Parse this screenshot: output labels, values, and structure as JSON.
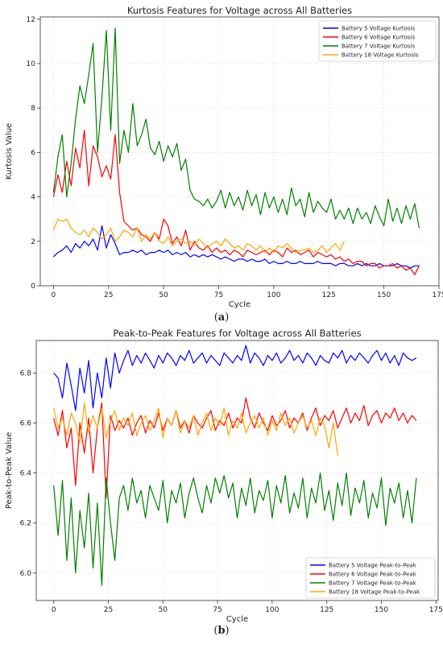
{
  "chart_data": [
    {
      "type": "line",
      "panel_label": "a",
      "title": "Kurtosis Features for Voltage across All Batteries",
      "xlabel": "Cycle",
      "ylabel": "Kurtosis Value",
      "xlim": [
        -6,
        175
      ],
      "ylim": [
        0,
        12.1
      ],
      "xticks": [
        0,
        25,
        50,
        75,
        100,
        125,
        150,
        175
      ],
      "yticks": [
        0,
        2,
        4,
        6,
        8,
        10,
        12
      ],
      "grid": true,
      "legend": "top-right",
      "series": [
        {
          "name": "Battery 5 Voltage Kurtosis",
          "color": "#0000ff",
          "x_step": 2,
          "values": [
            1.3,
            1.5,
            1.6,
            1.8,
            1.5,
            1.9,
            1.7,
            2.0,
            1.8,
            2.1,
            1.6,
            2.7,
            1.7,
            2.3,
            1.9,
            1.4,
            1.5,
            1.5,
            1.6,
            1.5,
            1.6,
            1.4,
            1.5,
            1.5,
            1.6,
            1.5,
            1.6,
            1.4,
            1.5,
            1.4,
            1.5,
            1.3,
            1.4,
            1.3,
            1.4,
            1.3,
            1.4,
            1.3,
            1.2,
            1.3,
            1.2,
            1.1,
            1.2,
            1.2,
            1.1,
            1.2,
            1.1,
            1.1,
            1.2,
            1.0,
            1.1,
            1.0,
            1.0,
            1.1,
            1.0,
            1.0,
            1.1,
            1.0,
            1.0,
            1.0,
            1.1,
            1.0,
            1.0,
            1.0,
            0.9,
            1.0,
            1.0,
            0.9,
            0.9,
            1.0,
            0.9,
            1.0,
            0.9,
            0.9,
            1.0,
            0.9,
            0.9,
            0.9,
            1.0,
            0.9,
            0.9,
            0.8,
            0.9,
            0.9
          ]
        },
        {
          "name": "Battery 6 Voltage Kurtosis",
          "color": "#ff0000",
          "x_step": 2,
          "values": [
            4.0,
            5.0,
            4.2,
            5.6,
            4.5,
            6.2,
            5.3,
            7.0,
            4.5,
            6.3,
            5.8,
            4.9,
            5.4,
            4.8,
            6.8,
            4.2,
            2.9,
            2.7,
            2.5,
            2.6,
            2.3,
            2.2,
            2.0,
            2.4,
            2.1,
            3.0,
            2.7,
            1.9,
            2.2,
            1.8,
            2.5,
            1.6,
            2.0,
            1.7,
            1.6,
            1.8,
            1.5,
            1.7,
            1.5,
            1.6,
            1.4,
            1.6,
            1.5,
            1.3,
            1.6,
            1.5,
            1.4,
            1.5,
            1.6,
            1.4,
            1.6,
            1.5,
            1.3,
            1.7,
            1.5,
            1.6,
            1.4,
            1.5,
            1.6,
            1.3,
            1.5,
            1.4,
            1.3,
            1.4,
            1.2,
            1.3,
            1.1,
            1.2,
            1.0,
            1.1,
            1.1,
            0.9,
            1.0,
            1.0,
            0.8,
            0.9,
            0.9,
            1.0,
            0.8,
            0.9,
            0.7,
            0.8,
            0.5,
            0.9
          ]
        },
        {
          "name": "Battery 7 Voltage Kurtosis",
          "color": "#008000",
          "x_step": 2,
          "values": [
            4.2,
            5.8,
            6.8,
            4.0,
            5.5,
            7.5,
            9.0,
            8.2,
            9.5,
            10.9,
            6.0,
            8.5,
            11.5,
            7.0,
            11.6,
            5.5,
            7.0,
            6.0,
            8.2,
            6.3,
            6.8,
            7.5,
            6.2,
            5.9,
            6.5,
            5.6,
            6.3,
            5.8,
            6.4,
            5.2,
            5.7,
            4.3,
            3.9,
            3.8,
            3.6,
            3.9,
            3.5,
            3.8,
            4.3,
            3.5,
            4.2,
            3.6,
            4.0,
            3.4,
            4.3,
            3.6,
            4.1,
            3.2,
            4.2,
            3.5,
            4.0,
            3.3,
            3.9,
            3.2,
            4.4,
            3.6,
            3.9,
            3.1,
            4.2,
            3.3,
            3.8,
            3.5,
            3.3,
            3.9,
            3.0,
            3.4,
            3.0,
            3.5,
            2.8,
            3.5,
            3.0,
            3.3,
            2.8,
            3.6,
            3.1,
            2.7,
            3.9,
            2.9,
            3.5,
            2.8,
            3.6,
            3.0,
            3.7,
            2.6
          ]
        },
        {
          "name": "Battery 18 Voltage Kurtosis",
          "color": "#ffa500",
          "x_step": 2,
          "values": [
            2.5,
            3.0,
            2.9,
            3.0,
            2.6,
            2.4,
            2.3,
            2.5,
            2.2,
            2.6,
            2.4,
            2.1,
            2.3,
            2.6,
            2.0,
            2.2,
            2.5,
            2.4,
            2.2,
            2.6,
            2.0,
            2.3,
            2.1,
            2.4,
            2.0,
            1.9,
            2.2,
            1.8,
            2.0,
            2.1,
            1.9,
            2.0,
            1.8,
            2.1,
            1.9,
            1.7,
            1.9,
            2.0,
            1.8,
            2.1,
            1.9,
            1.7,
            1.8,
            1.6,
            1.9,
            1.8,
            1.6,
            1.8,
            1.5,
            1.7,
            1.5,
            1.8,
            1.7,
            1.9,
            1.7,
            1.5,
            1.6,
            1.6,
            1.7,
            1.5,
            1.6,
            1.8,
            1.5,
            1.7,
            1.9,
            1.6,
            2.0
          ]
        }
      ]
    },
    {
      "type": "line",
      "panel_label": "b",
      "title": "Peak-to-Peak Features for Voltage across All Batteries",
      "xlabel": "Cycle",
      "ylabel": "Peak-to-Peak Value",
      "xlim": [
        -8,
        176
      ],
      "ylim": [
        5.89,
        6.93
      ],
      "xticks": [
        0,
        25,
        50,
        75,
        100,
        125,
        150,
        175
      ],
      "yticks": [
        6.0,
        6.2,
        6.4,
        6.6,
        6.8
      ],
      "grid": true,
      "legend": "bottom-right",
      "series": [
        {
          "name": "Battery 5 Voltage Peak-to-Peak",
          "color": "#0000ff",
          "x_step": 2,
          "values": [
            6.8,
            6.78,
            6.7,
            6.84,
            6.75,
            6.65,
            6.82,
            6.72,
            6.85,
            6.66,
            6.8,
            6.7,
            6.86,
            6.74,
            6.88,
            6.8,
            6.85,
            6.89,
            6.83,
            6.87,
            6.84,
            6.88,
            6.85,
            6.82,
            6.87,
            6.84,
            6.88,
            6.86,
            6.83,
            6.87,
            6.85,
            6.89,
            6.84,
            6.86,
            6.88,
            6.84,
            6.87,
            6.85,
            6.83,
            6.88,
            6.86,
            6.84,
            6.87,
            6.85,
            6.91,
            6.84,
            6.88,
            6.86,
            6.83,
            6.87,
            6.85,
            6.88,
            6.84,
            6.86,
            6.89,
            6.85,
            6.87,
            6.84,
            6.88,
            6.86,
            6.83,
            6.87,
            6.85,
            6.84,
            6.88,
            6.86,
            6.89,
            6.84,
            6.87,
            6.85,
            6.88,
            6.86,
            6.84,
            6.87,
            6.89,
            6.85,
            6.88,
            6.84,
            6.87,
            6.83,
            6.88,
            6.86,
            6.85,
            6.86
          ]
        },
        {
          "name": "Battery 6 Voltage Peak-to-Peak",
          "color": "#ff0000",
          "x_step": 2,
          "values": [
            6.62,
            6.55,
            6.65,
            6.5,
            6.58,
            6.35,
            6.6,
            6.48,
            6.62,
            6.4,
            6.58,
            6.68,
            6.3,
            6.63,
            6.57,
            6.61,
            6.58,
            6.62,
            6.55,
            6.6,
            6.63,
            6.56,
            6.61,
            6.58,
            6.64,
            6.57,
            6.62,
            6.59,
            6.65,
            6.58,
            6.61,
            6.56,
            6.63,
            6.6,
            6.58,
            6.62,
            6.65,
            6.57,
            6.61,
            6.59,
            6.64,
            6.58,
            6.62,
            6.6,
            6.7,
            6.62,
            6.58,
            6.64,
            6.6,
            6.57,
            6.63,
            6.59,
            6.61,
            6.65,
            6.58,
            6.62,
            6.6,
            6.64,
            6.57,
            6.62,
            6.66,
            6.59,
            6.63,
            6.61,
            6.65,
            6.58,
            6.62,
            6.66,
            6.6,
            6.64,
            6.61,
            6.67,
            6.59,
            6.63,
            6.65,
            6.6,
            6.64,
            6.62,
            6.66,
            6.61,
            6.64,
            6.6,
            6.63,
            6.61
          ]
        },
        {
          "name": "Battery 7 Voltage Peak-to-Peak",
          "color": "#008000",
          "x_step": 2,
          "values": [
            6.35,
            6.15,
            6.37,
            6.05,
            6.3,
            6.0,
            6.25,
            6.1,
            6.32,
            6.02,
            6.28,
            5.95,
            6.38,
            6.2,
            6.05,
            6.3,
            6.35,
            6.25,
            6.38,
            6.28,
            6.33,
            6.22,
            6.35,
            6.3,
            6.25,
            6.37,
            6.2,
            6.33,
            6.28,
            6.36,
            6.22,
            6.32,
            6.38,
            6.3,
            6.24,
            6.35,
            6.28,
            6.38,
            6.32,
            6.39,
            6.3,
            6.36,
            6.22,
            6.34,
            6.27,
            6.38,
            6.24,
            6.33,
            6.29,
            6.37,
            6.22,
            6.35,
            6.28,
            6.39,
            6.24,
            6.32,
            6.26,
            6.38,
            6.22,
            6.34,
            6.28,
            6.4,
            6.25,
            6.33,
            6.21,
            6.36,
            6.27,
            6.4,
            6.23,
            6.34,
            6.28,
            6.37,
            6.22,
            6.32,
            6.26,
            6.38,
            6.19,
            6.34,
            6.28,
            6.36,
            6.22,
            6.33,
            6.2,
            6.38
          ]
        },
        {
          "name": "Battery 18 Voltage Peak-to-Peak",
          "color": "#ffa500",
          "x_step": 2,
          "values": [
            6.66,
            6.58,
            6.62,
            6.55,
            6.64,
            6.6,
            6.52,
            6.68,
            6.56,
            6.63,
            6.58,
            6.66,
            6.54,
            6.61,
            6.65,
            6.57,
            6.62,
            6.59,
            6.64,
            6.55,
            6.6,
            6.63,
            6.57,
            6.61,
            6.66,
            6.54,
            6.62,
            6.59,
            6.65,
            6.56,
            6.61,
            6.58,
            6.63,
            6.55,
            6.6,
            6.64,
            6.57,
            6.62,
            6.59,
            6.66,
            6.55,
            6.61,
            6.58,
            6.64,
            6.56,
            6.6,
            6.63,
            6.58,
            6.62,
            6.55,
            6.61,
            6.57,
            6.64,
            6.59,
            6.62,
            6.56,
            6.6,
            6.63,
            6.58,
            6.61,
            6.55,
            6.62,
            6.59,
            6.5,
            6.6,
            6.47
          ]
        }
      ]
    }
  ]
}
